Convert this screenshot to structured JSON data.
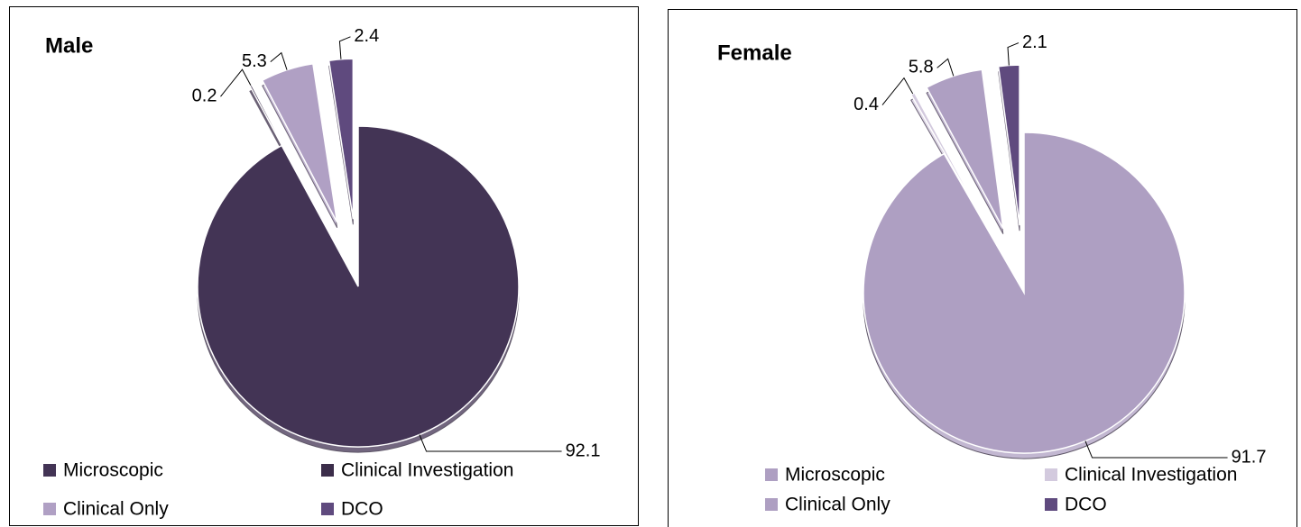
{
  "chart_data": [
    {
      "type": "pie",
      "title": "Male",
      "categories": [
        "Microscopic",
        "Clinical Investigation",
        "Clinical Only",
        "DCO"
      ],
      "values": [
        92.1,
        0.2,
        5.3,
        2.4
      ],
      "colors": [
        "#433455",
        "#3b2d4a",
        "#b0a0c4",
        "#5f4a7e"
      ]
    },
    {
      "type": "pie",
      "title": "Female",
      "categories": [
        "Microscopic",
        "Clinical Investigation",
        "Clinical Only",
        "DCO"
      ],
      "values": [
        91.7,
        0.4,
        5.8,
        2.1
      ],
      "colors": [
        "#ae9fc2",
        "#d3cade",
        "#ae9fc2",
        "#5f4a7e"
      ]
    }
  ]
}
